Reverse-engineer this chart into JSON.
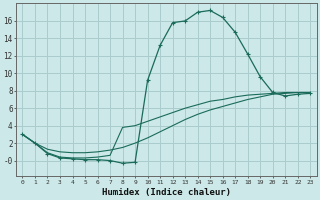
{
  "xlabel": "Humidex (Indice chaleur)",
  "bg_color": "#cce8e8",
  "grid_color": "#aacccc",
  "line_color": "#1a6b5a",
  "xlim_min": -0.5,
  "xlim_max": 23.5,
  "ylim_min": -1.8,
  "ylim_max": 18.0,
  "yticks": [
    0,
    2,
    4,
    6,
    8,
    10,
    12,
    14,
    16
  ],
  "ytick_labels": [
    "-0",
    "2",
    "4",
    "6",
    "8",
    "10",
    "12",
    "14",
    "16"
  ],
  "xticks": [
    0,
    1,
    2,
    3,
    4,
    5,
    6,
    7,
    8,
    9,
    10,
    11,
    12,
    13,
    14,
    15,
    16,
    17,
    18,
    19,
    20,
    21,
    22,
    23
  ],
  "curve1_x": [
    0,
    1,
    2,
    3,
    4,
    5,
    6,
    7,
    8,
    9,
    10,
    11,
    12,
    13,
    14,
    15,
    16,
    17,
    18,
    19,
    20,
    21,
    22,
    23
  ],
  "curve1_y": [
    3.0,
    2.0,
    0.8,
    0.3,
    0.2,
    0.1,
    0.1,
    0.0,
    -0.3,
    -0.2,
    9.2,
    13.2,
    15.8,
    16.0,
    17.0,
    17.2,
    16.4,
    14.7,
    12.2,
    9.6,
    7.8,
    7.4,
    7.6,
    7.7
  ],
  "curve2_x": [
    0,
    1,
    2,
    3,
    4,
    5,
    6,
    7,
    8,
    9,
    10,
    11,
    12,
    13,
    14,
    15,
    16,
    17,
    18,
    19,
    20,
    21,
    22,
    23
  ],
  "curve2_y": [
    3.0,
    2.0,
    1.3,
    1.0,
    0.9,
    0.9,
    1.0,
    1.2,
    1.5,
    2.0,
    2.6,
    3.3,
    4.0,
    4.7,
    5.3,
    5.8,
    6.2,
    6.6,
    7.0,
    7.3,
    7.6,
    7.7,
    7.8,
    7.8
  ],
  "curve3_x": [
    0,
    1,
    2,
    3,
    4,
    5,
    6,
    7,
    8,
    9,
    10,
    11,
    12,
    13,
    14,
    15,
    16,
    17,
    18,
    19,
    20,
    21,
    22,
    23
  ],
  "curve3_y": [
    3.0,
    2.0,
    0.9,
    0.4,
    0.3,
    0.3,
    0.4,
    0.6,
    3.8,
    4.0,
    4.5,
    5.0,
    5.5,
    6.0,
    6.4,
    6.8,
    7.0,
    7.3,
    7.5,
    7.6,
    7.7,
    7.8,
    7.8,
    7.8
  ]
}
